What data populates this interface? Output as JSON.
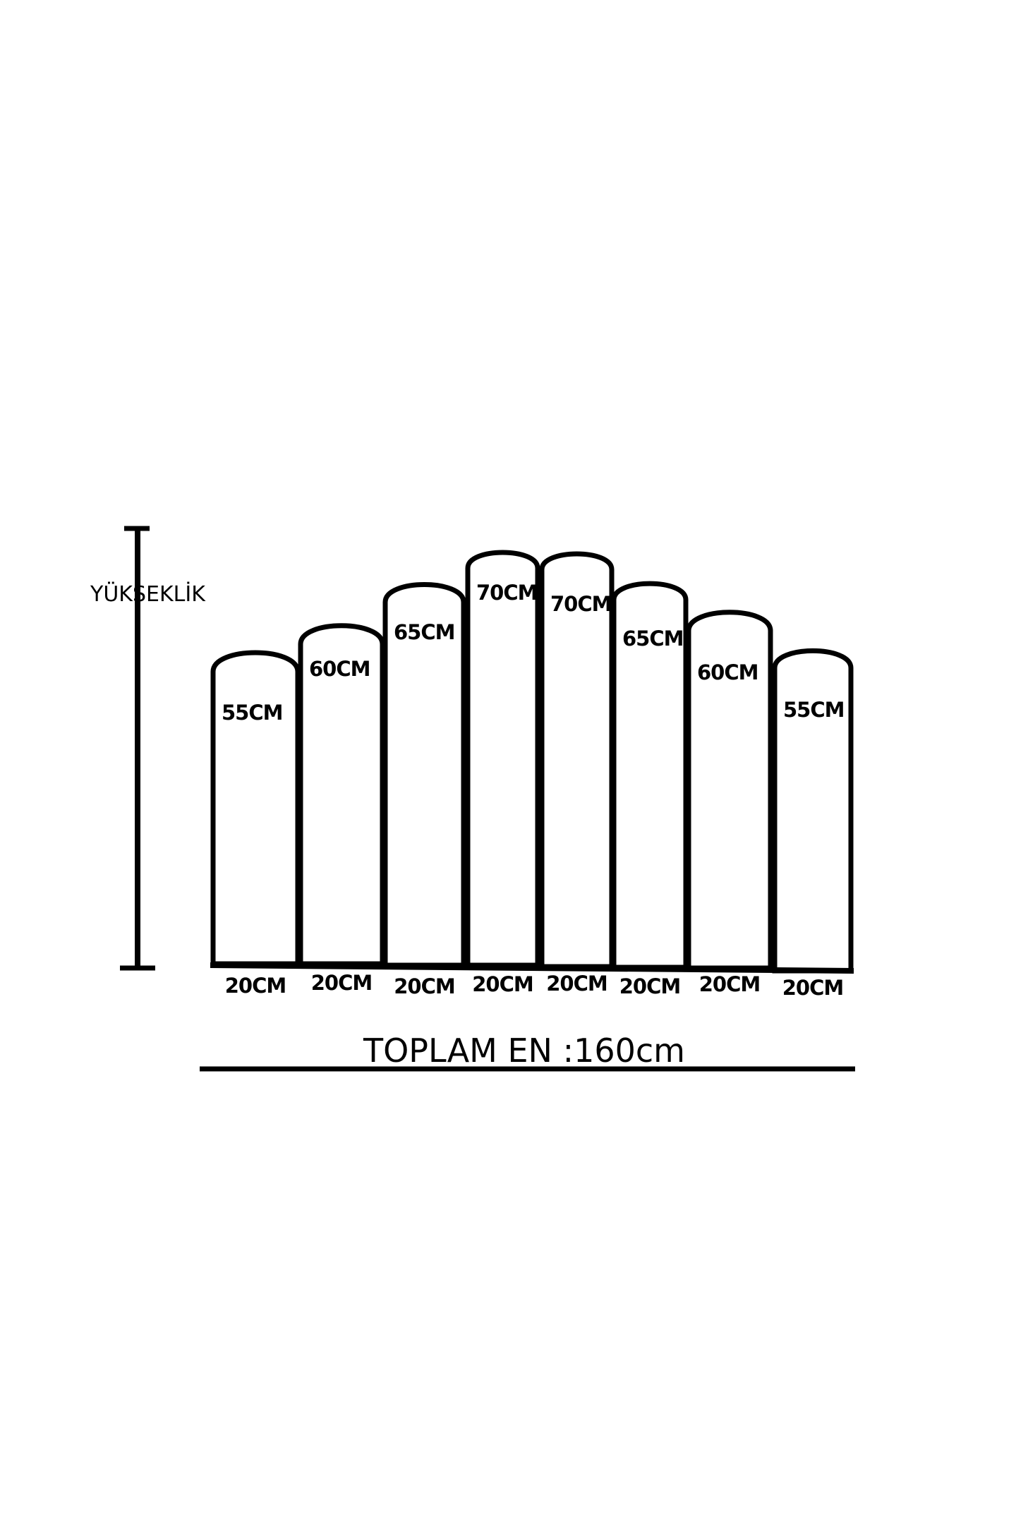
{
  "height_label": "YÜKSEKLİK",
  "panels": [
    {
      "height": "55CM",
      "width": "20CM"
    },
    {
      "height": "60CM",
      "width": "20CM"
    },
    {
      "height": "65CM",
      "width": "20CM"
    },
    {
      "height": "70CM",
      "width": "20CM"
    },
    {
      "height": "70CM",
      "width": "20CM"
    },
    {
      "height": "65CM",
      "width": "20CM"
    },
    {
      "height": "60CM",
      "width": "20CM"
    },
    {
      "height": "55CM",
      "width": "20CM"
    }
  ],
  "total_width_label": "TOPLAM EN :160cm",
  "colors": {
    "stroke": "#000000",
    "background": "#ffffff"
  }
}
